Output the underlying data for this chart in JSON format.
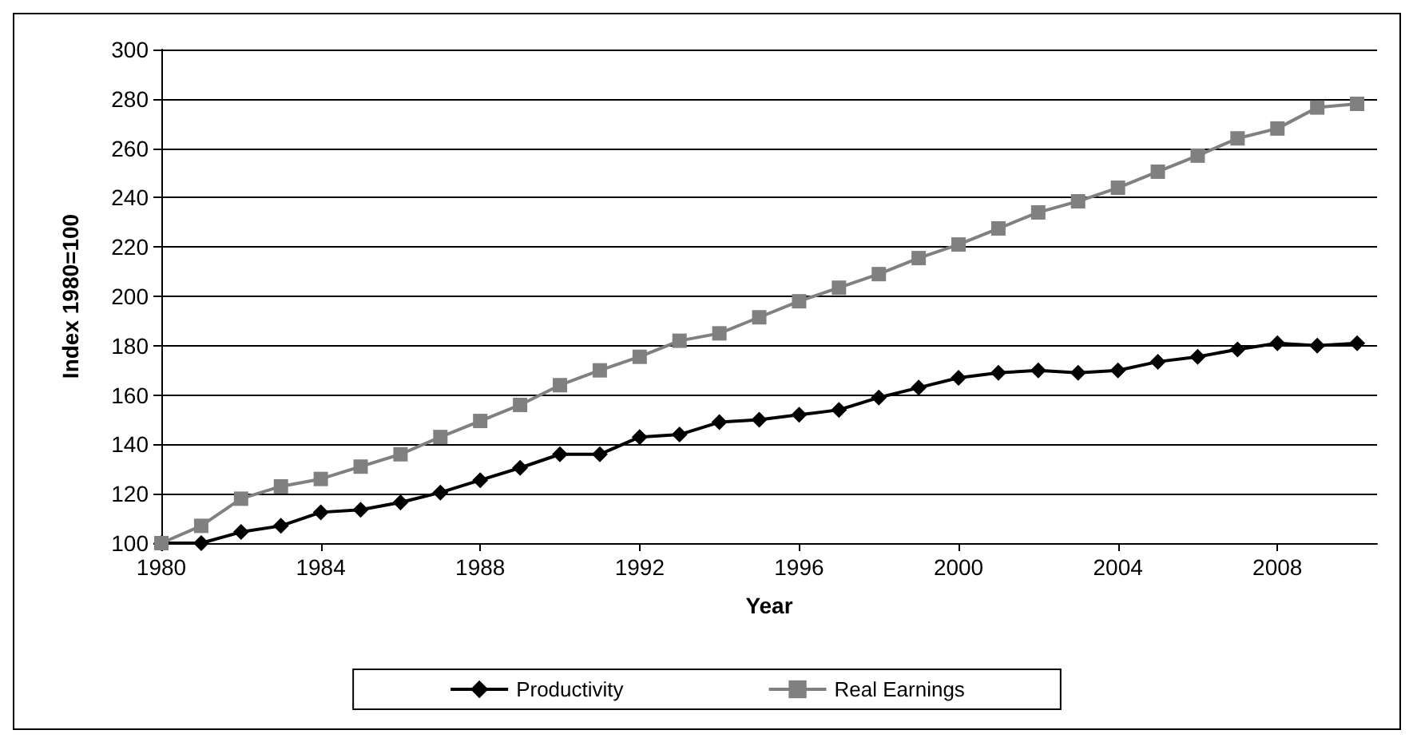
{
  "chart_data": {
    "type": "line",
    "xlabel": "Year",
    "ylabel": "Index 1980=100",
    "x": [
      1980,
      1981,
      1982,
      1983,
      1984,
      1985,
      1986,
      1987,
      1988,
      1989,
      1990,
      1991,
      1992,
      1993,
      1994,
      1995,
      1996,
      1997,
      1998,
      1999,
      2000,
      2001,
      2002,
      2003,
      2004,
      2005,
      2006,
      2007,
      2008,
      2009,
      2010
    ],
    "series": [
      {
        "name": "Productivity",
        "color": "#000000",
        "marker": "diamond",
        "values": [
          100,
          100,
          104.5,
          107,
          112.5,
          113.5,
          116.5,
          120.5,
          125.5,
          130.5,
          136,
          136,
          143,
          144,
          149,
          150,
          152,
          154,
          159,
          163,
          167,
          169,
          170,
          169,
          170,
          173.5,
          175.5,
          178.5,
          181,
          180,
          181
        ]
      },
      {
        "name": "Real Earnings",
        "color": "#808080",
        "marker": "square",
        "values": [
          100,
          107,
          118,
          123,
          126,
          131,
          136,
          143,
          149.5,
          156,
          164,
          170,
          175.5,
          182,
          185,
          191.5,
          198,
          203.5,
          209,
          215.5,
          221,
          227.5,
          234,
          238.5,
          244,
          250.5,
          257,
          264,
          268,
          276.5,
          278
        ]
      }
    ],
    "xlim": [
      1980,
      2010.5
    ],
    "xticks": [
      1980,
      1984,
      1988,
      1992,
      1996,
      2000,
      2004,
      2008
    ],
    "ylim": [
      100,
      300
    ],
    "yticks": [
      100,
      120,
      140,
      160,
      180,
      200,
      220,
      240,
      260,
      280,
      300
    ],
    "grid": "y",
    "legend": "bottom",
    "line_style": "solid"
  }
}
